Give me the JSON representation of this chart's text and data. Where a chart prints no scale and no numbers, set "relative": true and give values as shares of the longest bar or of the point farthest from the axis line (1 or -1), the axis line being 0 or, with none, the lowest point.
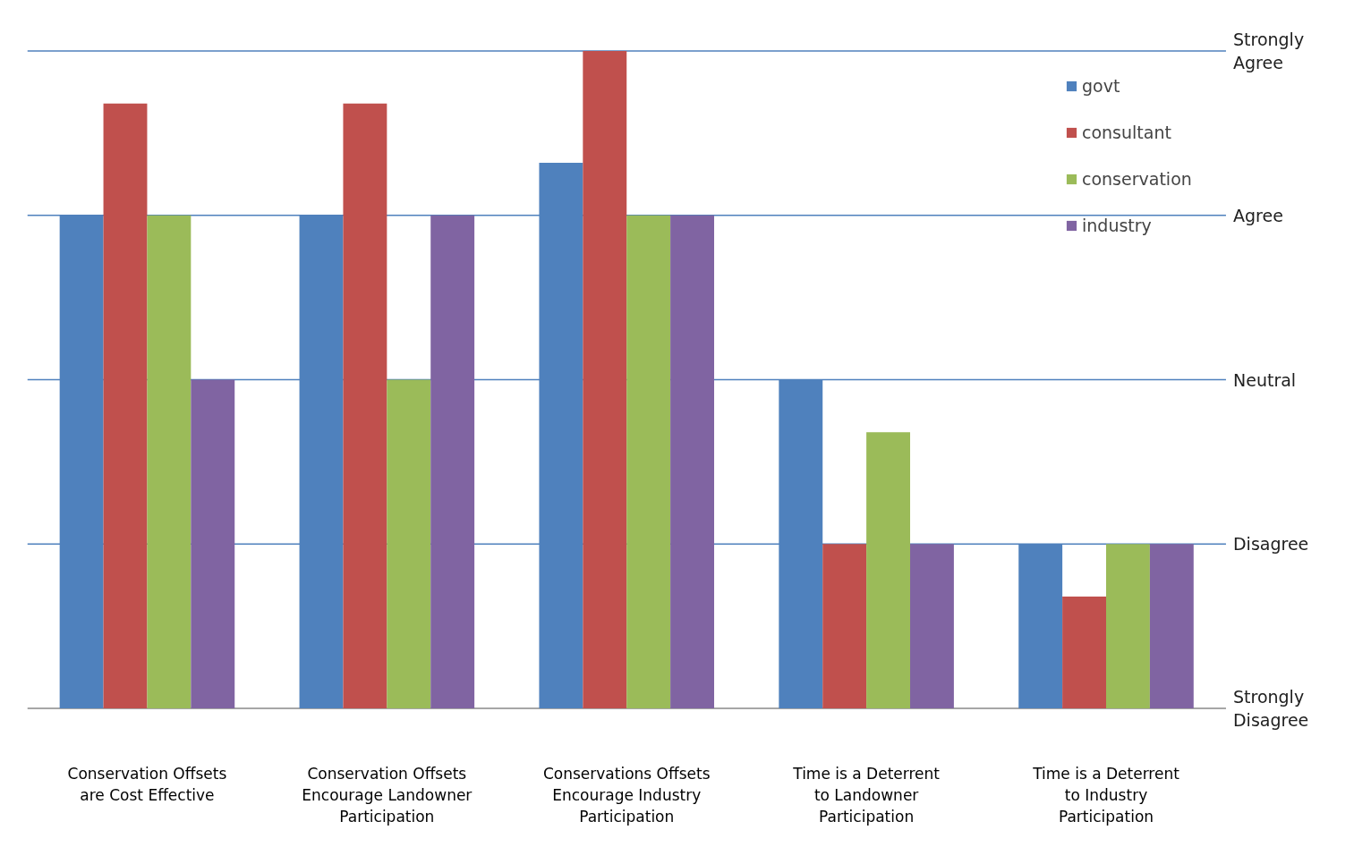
{
  "chart_data": {
    "type": "bar",
    "categories": [
      "Conservation Offsets are Cost Effective",
      "Conservation Offsets Encourage Landowner Participation",
      "Conservations Offsets Encourage Industry Participation",
      "Time is a Deterrent to Landowner Participation",
      "Time is a Deterrent to Industry Participation"
    ],
    "series": [
      {
        "name": "govt",
        "color": "#4f81bd",
        "values": [
          0.75,
          0.75,
          0.83,
          0.5,
          0.25
        ]
      },
      {
        "name": "consultant",
        "color": "#c0504d",
        "values": [
          0.92,
          0.92,
          1,
          0.25,
          0.17
        ]
      },
      {
        "name": "conservation",
        "color": "#9bbb59",
        "values": [
          0.75,
          0.5,
          0.75,
          0.42,
          0.25
        ]
      },
      {
        "name": "industry",
        "color": "#8064a2",
        "values": [
          0.5,
          0.75,
          0.75,
          0.25,
          0.25
        ]
      }
    ],
    "relative": true,
    "ref_lines": [
      {
        "axis": "y",
        "value": 0,
        "label": "Strongly Disagree",
        "color": "#888888"
      },
      {
        "axis": "y",
        "value": 0.25,
        "label": "Disagree",
        "color": "#4f81bd"
      },
      {
        "axis": "y",
        "value": 0.5,
        "label": "Neutral",
        "color": "#4f81bd"
      },
      {
        "axis": "y",
        "value": 0.75,
        "label": "Agree",
        "color": "#4f81bd"
      },
      {
        "axis": "y",
        "value": 1,
        "label": "Strongly Agree",
        "color": "#4f81bd"
      }
    ],
    "legend": "top right"
  }
}
